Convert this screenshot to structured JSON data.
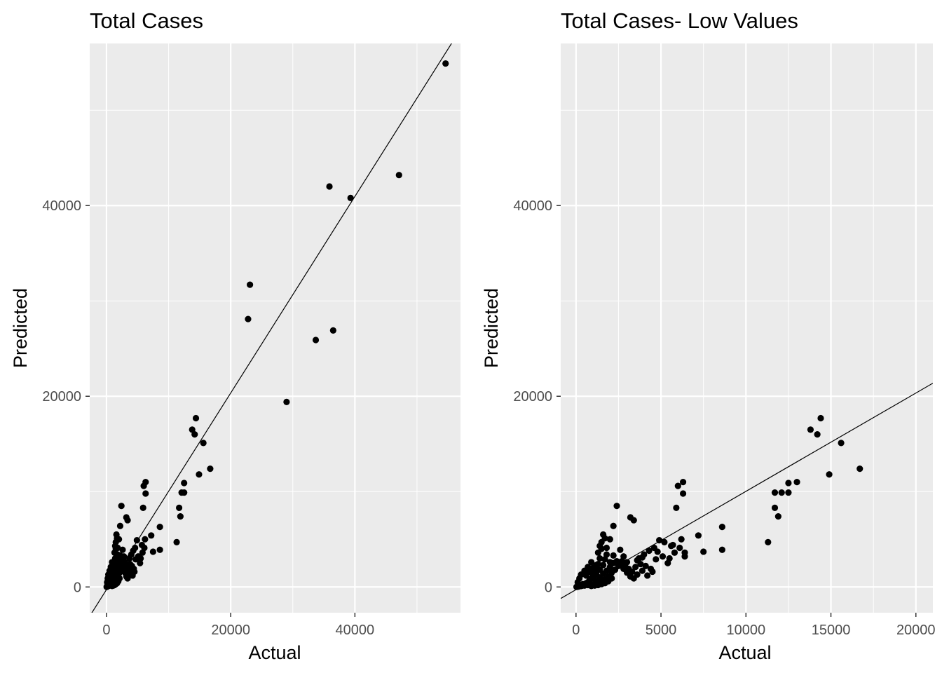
{
  "chart_data": [
    {
      "type": "scatter",
      "title": "Total Cases",
      "xlabel": "Actual",
      "ylabel": "Predicted",
      "xlim": [
        -2700,
        57000
      ],
      "ylim": [
        -2700,
        57000
      ],
      "x_ticks": [
        0,
        20000,
        40000
      ],
      "x_tick_labels": [
        "0",
        "20000",
        "40000"
      ],
      "y_ticks": [
        0,
        20000,
        40000
      ],
      "y_tick_labels": [
        "0",
        "20000",
        "40000"
      ],
      "grid": true,
      "reference_line": {
        "type": "fit",
        "intercept": -280,
        "slope": 1.031
      },
      "points": [
        [
          54600,
          54900
        ],
        [
          47100,
          43200
        ],
        [
          39300,
          40800
        ],
        [
          35900,
          42000
        ],
        [
          23100,
          31700
        ],
        [
          22800,
          28100
        ],
        [
          36500,
          26900
        ],
        [
          33700,
          25900
        ],
        [
          29000,
          19400
        ],
        [
          14400,
          17700
        ],
        [
          13800,
          16500
        ],
        [
          14200,
          16000
        ],
        [
          15600,
          15100
        ],
        [
          16700,
          12400
        ],
        [
          14900,
          11800
        ],
        [
          12500,
          10900
        ],
        [
          12100,
          9900
        ],
        [
          12500,
          9900
        ],
        [
          11700,
          8300
        ],
        [
          11900,
          7400
        ],
        [
          11300,
          4700
        ],
        [
          8600,
          6300
        ],
        [
          8600,
          3900
        ],
        [
          7500,
          3700
        ],
        [
          7200,
          5400
        ],
        [
          6300,
          11000
        ],
        [
          6000,
          10600
        ],
        [
          6300,
          9800
        ],
        [
          5900,
          8300
        ],
        [
          6200,
          5000
        ],
        [
          6100,
          4100
        ],
        [
          5700,
          4400
        ],
        [
          5800,
          3600
        ],
        [
          5500,
          3000
        ],
        [
          5400,
          2500
        ],
        [
          4900,
          4900
        ],
        [
          4600,
          4100
        ],
        [
          4300,
          3800
        ],
        [
          4000,
          3400
        ],
        [
          3700,
          3000
        ],
        [
          3400,
          7000
        ],
        [
          3200,
          7300
        ],
        [
          2400,
          8500
        ],
        [
          2200,
          6400
        ],
        [
          2000,
          5000
        ],
        [
          1800,
          4100
        ],
        [
          1600,
          5500
        ],
        [
          1500,
          4000
        ],
        [
          1400,
          3000
        ],
        [
          1300,
          2400
        ],
        [
          1200,
          2000
        ],
        [
          1100,
          1600
        ],
        [
          1000,
          1200
        ],
        [
          900,
          900
        ],
        [
          800,
          700
        ],
        [
          700,
          500
        ],
        [
          600,
          300
        ],
        [
          500,
          200
        ],
        [
          400,
          150
        ],
        [
          300,
          100
        ],
        [
          200,
          80
        ],
        [
          150,
          50
        ],
        [
          100,
          30
        ],
        [
          60,
          20
        ],
        [
          30,
          10
        ],
        [
          2600,
          3900
        ],
        [
          2800,
          3200
        ],
        [
          3000,
          2600
        ],
        [
          2500,
          2200
        ],
        [
          2300,
          1800
        ],
        [
          2100,
          1500
        ],
        [
          1900,
          1100
        ],
        [
          1700,
          800
        ],
        [
          1500,
          500
        ],
        [
          1300,
          400
        ],
        [
          1100,
          300
        ],
        [
          900,
          250
        ],
        [
          700,
          200
        ],
        [
          500,
          150
        ],
        [
          300,
          100
        ],
        [
          2700,
          2700
        ],
        [
          2900,
          2400
        ],
        [
          3100,
          1900
        ],
        [
          3300,
          1600
        ],
        [
          3500,
          2100
        ],
        [
          3800,
          2400
        ],
        [
          4100,
          2200
        ],
        [
          4400,
          1900
        ],
        [
          4700,
          2900
        ],
        [
          5100,
          3200
        ],
        [
          2000,
          2600
        ],
        [
          1800,
          3400
        ],
        [
          1700,
          2900
        ],
        [
          1600,
          2300
        ],
        [
          1400,
          1800
        ],
        [
          1200,
          1300
        ],
        [
          1000,
          900
        ],
        [
          800,
          600
        ],
        [
          600,
          400
        ],
        [
          400,
          300
        ],
        [
          200,
          200
        ],
        [
          100,
          100
        ],
        [
          1300,
          3600
        ],
        [
          1400,
          4300
        ],
        [
          1500,
          4700
        ],
        [
          1700,
          5100
        ],
        [
          900,
          2600
        ],
        [
          700,
          2100
        ],
        [
          500,
          1700
        ],
        [
          300,
          1300
        ],
        [
          200,
          900
        ],
        [
          100,
          500
        ],
        [
          600,
          1200
        ],
        [
          800,
          1600
        ],
        [
          1000,
          2000
        ],
        [
          1200,
          2300
        ],
        [
          2200,
          3300
        ],
        [
          2400,
          2700
        ],
        [
          2600,
          2300
        ],
        [
          2800,
          1900
        ],
        [
          3000,
          1500
        ],
        [
          3200,
          1100
        ],
        [
          3400,
          900
        ],
        [
          3600,
          1300
        ],
        [
          3900,
          1700
        ],
        [
          4200,
          1200
        ],
        [
          4500,
          1600
        ],
        [
          2100,
          900
        ],
        [
          1900,
          600
        ],
        [
          1700,
          400
        ],
        [
          1500,
          300
        ],
        [
          1300,
          200
        ],
        [
          1100,
          150
        ],
        [
          900,
          100
        ],
        [
          1200,
          600
        ],
        [
          1400,
          1000
        ],
        [
          1600,
          1400
        ],
        [
          1800,
          1700
        ],
        [
          2000,
          2100
        ],
        [
          2200,
          2500
        ]
      ]
    },
    {
      "type": "scatter",
      "title": "Total Cases- Low Values",
      "xlabel": "Actual",
      "ylabel": "Predicted",
      "xlim": [
        -900,
        21000
      ],
      "ylim": [
        -2700,
        57000
      ],
      "x_ticks": [
        0,
        5000,
        10000,
        15000,
        20000
      ],
      "x_tick_labels": [
        "0",
        "5000",
        "10000",
        "15000",
        "20000"
      ],
      "y_ticks": [
        0,
        20000,
        40000
      ],
      "y_tick_labels": [
        "0",
        "20000",
        "40000"
      ],
      "grid": true,
      "reference_line": {
        "type": "fit",
        "intercept": -280,
        "slope": 1.031
      },
      "points": [
        [
          14400,
          17700
        ],
        [
          13800,
          16500
        ],
        [
          14200,
          16000
        ],
        [
          15600,
          15100
        ],
        [
          16700,
          12400
        ],
        [
          14900,
          11800
        ],
        [
          12500,
          10900
        ],
        [
          12100,
          9900
        ],
        [
          12500,
          9900
        ],
        [
          11700,
          9900
        ],
        [
          13000,
          11000
        ],
        [
          11700,
          8300
        ],
        [
          11900,
          7400
        ],
        [
          11300,
          4700
        ],
        [
          8600,
          6300
        ],
        [
          8600,
          3900
        ],
        [
          7500,
          3700
        ],
        [
          7200,
          5400
        ],
        [
          6300,
          11000
        ],
        [
          6000,
          10600
        ],
        [
          6300,
          9800
        ],
        [
          5900,
          8300
        ],
        [
          6200,
          5000
        ],
        [
          6100,
          4100
        ],
        [
          5700,
          4400
        ],
        [
          5800,
          3600
        ],
        [
          5500,
          3000
        ],
        [
          5400,
          2500
        ],
        [
          4900,
          4900
        ],
        [
          4600,
          4100
        ],
        [
          4300,
          3800
        ],
        [
          4000,
          3400
        ],
        [
          3700,
          3000
        ],
        [
          3400,
          7000
        ],
        [
          3200,
          7300
        ],
        [
          2400,
          8500
        ],
        [
          2200,
          6400
        ],
        [
          2000,
          5000
        ],
        [
          1800,
          4100
        ],
        [
          1600,
          5500
        ],
        [
          1500,
          4000
        ],
        [
          1400,
          3000
        ],
        [
          1300,
          2400
        ],
        [
          1200,
          2000
        ],
        [
          1100,
          1600
        ],
        [
          1000,
          1200
        ],
        [
          900,
          900
        ],
        [
          800,
          700
        ],
        [
          700,
          500
        ],
        [
          600,
          300
        ],
        [
          500,
          200
        ],
        [
          400,
          150
        ],
        [
          300,
          100
        ],
        [
          200,
          80
        ],
        [
          150,
          50
        ],
        [
          100,
          30
        ],
        [
          60,
          20
        ],
        [
          30,
          10
        ],
        [
          2600,
          3900
        ],
        [
          2800,
          3200
        ],
        [
          3000,
          2600
        ],
        [
          2500,
          2200
        ],
        [
          2300,
          1800
        ],
        [
          2100,
          1500
        ],
        [
          1900,
          1100
        ],
        [
          1700,
          800
        ],
        [
          1500,
          500
        ],
        [
          1300,
          400
        ],
        [
          1100,
          300
        ],
        [
          900,
          250
        ],
        [
          700,
          200
        ],
        [
          500,
          150
        ],
        [
          300,
          100
        ],
        [
          2700,
          2700
        ],
        [
          2900,
          2400
        ],
        [
          3100,
          1900
        ],
        [
          3300,
          1600
        ],
        [
          3500,
          2100
        ],
        [
          3800,
          2400
        ],
        [
          4100,
          2200
        ],
        [
          4400,
          1900
        ],
        [
          4700,
          2900
        ],
        [
          5100,
          3200
        ],
        [
          2000,
          2600
        ],
        [
          1800,
          3400
        ],
        [
          1700,
          2900
        ],
        [
          1600,
          2300
        ],
        [
          1400,
          1800
        ],
        [
          1200,
          1300
        ],
        [
          1000,
          900
        ],
        [
          800,
          600
        ],
        [
          600,
          400
        ],
        [
          400,
          300
        ],
        [
          200,
          200
        ],
        [
          100,
          100
        ],
        [
          1300,
          3600
        ],
        [
          1400,
          4300
        ],
        [
          1500,
          4700
        ],
        [
          1700,
          5100
        ],
        [
          900,
          2600
        ],
        [
          700,
          2100
        ],
        [
          500,
          1700
        ],
        [
          300,
          1300
        ],
        [
          200,
          900
        ],
        [
          100,
          500
        ],
        [
          600,
          1200
        ],
        [
          800,
          1600
        ],
        [
          1000,
          2000
        ],
        [
          1200,
          2300
        ],
        [
          2200,
          3300
        ],
        [
          2400,
          2700
        ],
        [
          2600,
          2300
        ],
        [
          2800,
          1900
        ],
        [
          3000,
          1500
        ],
        [
          3200,
          1100
        ],
        [
          3400,
          900
        ],
        [
          3600,
          1300
        ],
        [
          3900,
          1700
        ],
        [
          4200,
          1200
        ],
        [
          4500,
          1600
        ],
        [
          2100,
          900
        ],
        [
          1900,
          600
        ],
        [
          1700,
          400
        ],
        [
          1500,
          300
        ],
        [
          1300,
          200
        ],
        [
          1100,
          150
        ],
        [
          900,
          100
        ],
        [
          1200,
          600
        ],
        [
          1400,
          1000
        ],
        [
          1600,
          1400
        ],
        [
          1800,
          1700
        ],
        [
          2000,
          2100
        ],
        [
          2200,
          2500
        ],
        [
          5200,
          4700
        ],
        [
          5600,
          4300
        ],
        [
          6400,
          3600
        ],
        [
          6400,
          3200
        ],
        [
          4800,
          3700
        ],
        [
          3600,
          2800
        ],
        [
          3900,
          3100
        ]
      ]
    }
  ]
}
